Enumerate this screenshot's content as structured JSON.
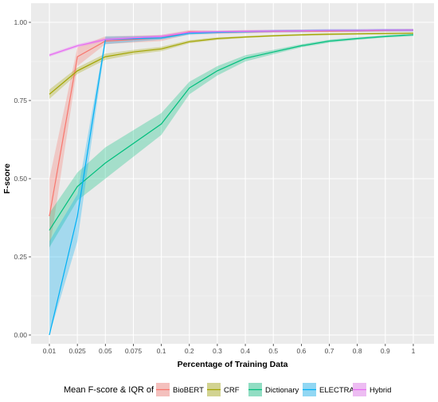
{
  "chart_data": {
    "type": "line",
    "xlabel": "Percentage of Training Data",
    "ylabel": "F-score",
    "x_categories": [
      "0.01",
      "0.025",
      "0.05",
      "0.075",
      "0.1",
      "0.2",
      "0.3",
      "0.4",
      "0.5",
      "0.6",
      "0.7",
      "0.8",
      "0.9",
      "1"
    ],
    "y_ticks": [
      "0.00",
      "0.25",
      "0.50",
      "0.75",
      "1.00"
    ],
    "ylim": [
      0,
      1
    ],
    "grid": true,
    "legend": {
      "title": "Mean F-score & IQR of",
      "position": "bottom"
    },
    "series": [
      {
        "name": "BioBERT",
        "color": "#F8766D",
        "x": [
          "0.01",
          "0.025",
          "0.05",
          "0.1",
          "0.2",
          "0.3",
          "0.4",
          "0.5",
          "0.6",
          "0.7",
          "0.8",
          "0.9",
          "1"
        ],
        "mean": [
          0.38,
          0.89,
          0.94,
          0.95,
          0.97,
          0.968,
          0.97,
          0.971,
          0.972,
          0.972,
          0.973,
          0.974,
          0.975
        ],
        "lower": [
          0.27,
          0.86,
          0.93,
          0.94,
          0.962,
          0.963,
          0.965,
          0.967,
          0.968,
          0.968,
          0.969,
          0.97,
          0.971
        ],
        "upper": [
          0.5,
          0.92,
          0.955,
          0.96,
          0.975,
          0.973,
          0.975,
          0.975,
          0.976,
          0.976,
          0.977,
          0.978,
          0.979
        ]
      },
      {
        "name": "CRF",
        "color": "#A3A500",
        "x": [
          "0.01",
          "0.025",
          "0.05",
          "0.075",
          "0.1",
          "0.2",
          "0.3",
          "0.4",
          "0.5",
          "0.6",
          "0.7",
          "0.8",
          "0.9",
          "1"
        ],
        "mean": [
          0.77,
          0.845,
          0.89,
          0.905,
          0.915,
          0.938,
          0.948,
          0.953,
          0.957,
          0.96,
          0.962,
          0.963,
          0.964,
          0.965
        ],
        "lower": [
          0.755,
          0.835,
          0.88,
          0.897,
          0.908,
          0.933,
          0.944,
          0.95,
          0.954,
          0.957,
          0.959,
          0.961,
          0.962,
          0.963
        ],
        "upper": [
          0.785,
          0.855,
          0.9,
          0.912,
          0.922,
          0.943,
          0.952,
          0.956,
          0.96,
          0.963,
          0.965,
          0.966,
          0.967,
          0.968
        ]
      },
      {
        "name": "Dictionary",
        "color": "#00BF7D",
        "x": [
          "0.01",
          "0.025",
          "0.05",
          "0.1",
          "0.2",
          "0.3",
          "0.4",
          "0.5",
          "0.6",
          "0.7",
          "0.8",
          "0.9",
          "1"
        ],
        "mean": [
          0.335,
          0.475,
          0.55,
          0.675,
          0.79,
          0.845,
          0.885,
          0.905,
          0.925,
          0.94,
          0.948,
          0.955,
          0.96
        ],
        "lower": [
          0.28,
          0.43,
          0.5,
          0.64,
          0.77,
          0.83,
          0.875,
          0.898,
          0.92,
          0.935,
          0.944,
          0.951,
          0.956
        ],
        "upper": [
          0.39,
          0.52,
          0.6,
          0.71,
          0.81,
          0.86,
          0.895,
          0.912,
          0.93,
          0.945,
          0.952,
          0.959,
          0.964
        ]
      },
      {
        "name": "ELECTRA",
        "color": "#00B0F6",
        "x": [
          "0.01",
          "0.025",
          "0.05",
          "0.1",
          "0.2",
          "0.3",
          "0.4",
          "0.5",
          "0.6",
          "0.7",
          "0.8",
          "0.9",
          "1"
        ],
        "mean": [
          0.0,
          0.38,
          0.945,
          0.95,
          0.965,
          0.968,
          0.97,
          0.972,
          0.973,
          0.974,
          0.974,
          0.975,
          0.975
        ],
        "lower": [
          0.0,
          0.3,
          0.93,
          0.945,
          0.96,
          0.964,
          0.966,
          0.968,
          0.969,
          0.97,
          0.97,
          0.971,
          0.971
        ],
        "upper": [
          0.3,
          0.45,
          0.955,
          0.957,
          0.97,
          0.972,
          0.974,
          0.976,
          0.977,
          0.978,
          0.978,
          0.979,
          0.979
        ]
      },
      {
        "name": "Hybrid",
        "color": "#E76BF3",
        "x": [
          "0.01",
          "0.025",
          "0.05",
          "0.1",
          "0.2",
          "0.3",
          "0.4",
          "0.5",
          "0.6",
          "0.7",
          "0.8",
          "0.9",
          "1"
        ],
        "mean": [
          0.895,
          0.925,
          0.945,
          0.955,
          0.968,
          0.97,
          0.971,
          0.972,
          0.973,
          0.974,
          0.974,
          0.975,
          0.975
        ],
        "lower": [
          0.89,
          0.92,
          0.94,
          0.95,
          0.963,
          0.966,
          0.967,
          0.968,
          0.969,
          0.97,
          0.97,
          0.971,
          0.971
        ],
        "upper": [
          0.9,
          0.93,
          0.95,
          0.96,
          0.973,
          0.974,
          0.975,
          0.976,
          0.977,
          0.978,
          0.978,
          0.979,
          0.979
        ]
      }
    ]
  }
}
